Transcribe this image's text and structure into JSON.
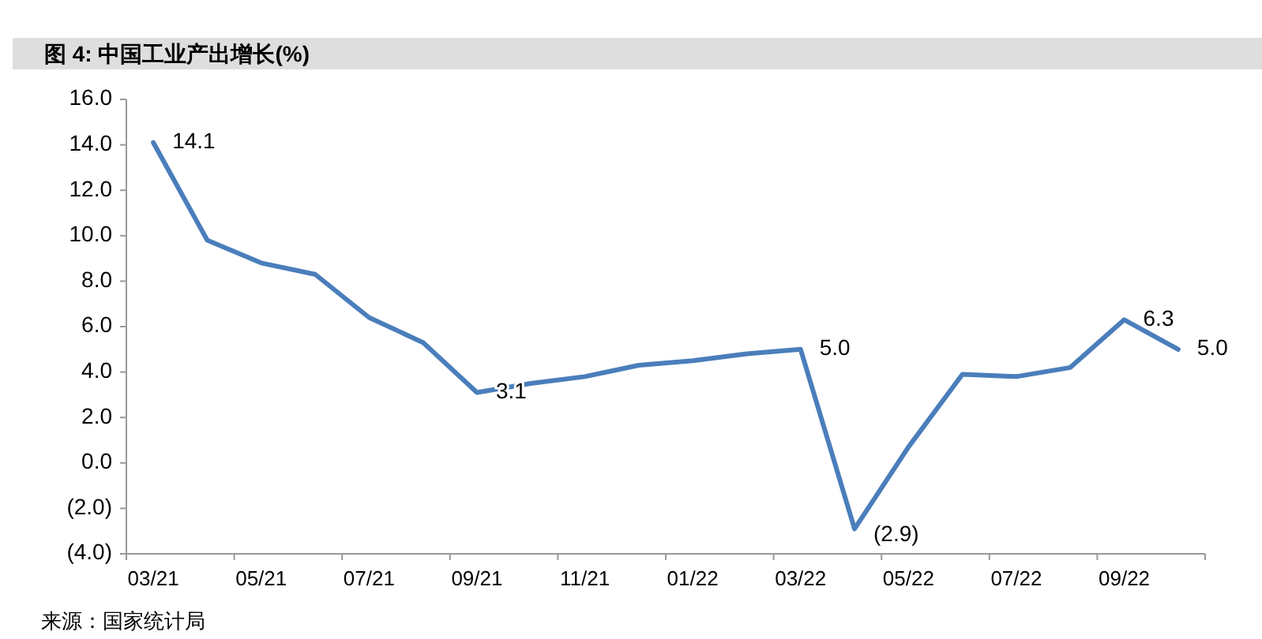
{
  "chart_data": {
    "type": "line",
    "title": "图 4:  中国工业产出增长(%)",
    "categories": [
      "03/21",
      null,
      "05/21",
      null,
      "07/21",
      null,
      "09/21",
      null,
      "11/21",
      null,
      "01/22",
      null,
      "03/22",
      null,
      "05/22",
      null,
      "07/22",
      null,
      "09/22",
      null
    ],
    "series": [
      {
        "color": "#4a7ebb",
        "values": [
          14.1,
          9.8,
          8.8,
          8.3,
          6.4,
          5.3,
          3.1,
          3.5,
          3.8,
          4.3,
          4.5,
          4.8,
          5.0,
          -2.9,
          0.7,
          3.9,
          3.8,
          4.2,
          6.3,
          5.0
        ],
        "value_labels": [
          "14.1",
          null,
          null,
          null,
          null,
          null,
          "3.1",
          null,
          null,
          null,
          null,
          null,
          "5.0",
          "(2.9)",
          null,
          null,
          null,
          null,
          "6.3",
          "5.0"
        ]
      }
    ],
    "ylim": [
      -4,
      16
    ],
    "yticks": [
      {
        "value": -4,
        "label": "(4.0)"
      },
      {
        "value": -2,
        "label": "(2.0)"
      },
      {
        "value": 0,
        "label": "0.0"
      },
      {
        "value": 2,
        "label": "2.0"
      },
      {
        "value": 4,
        "label": "4.0"
      },
      {
        "value": 6,
        "label": "6.0"
      },
      {
        "value": 8,
        "label": "8.0"
      },
      {
        "value": 10,
        "label": "10.0"
      },
      {
        "value": 12,
        "label": "12.0"
      },
      {
        "value": 14,
        "label": "14.0"
      },
      {
        "value": 16,
        "label": "16.0"
      }
    ],
    "annotations": [
      "来源：国家统计局"
    ],
    "grid": false,
    "line_style": "solid",
    "marker": "none"
  }
}
